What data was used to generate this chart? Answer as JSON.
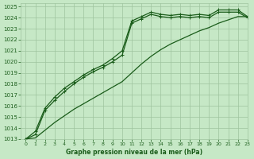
{
  "title": "Graphe pression niveau de la mer (hPa)",
  "bg_color": "#c6e8c6",
  "grid_color": "#9ec49e",
  "line_color": "#1a5c1a",
  "xlim": [
    -0.5,
    23
  ],
  "ylim": [
    1013,
    1025.3
  ],
  "xticks": [
    0,
    1,
    2,
    3,
    4,
    5,
    6,
    7,
    8,
    9,
    10,
    11,
    12,
    13,
    14,
    15,
    16,
    17,
    18,
    19,
    20,
    21,
    22,
    23
  ],
  "yticks": [
    1013,
    1014,
    1015,
    1016,
    1017,
    1018,
    1019,
    1020,
    1021,
    1022,
    1023,
    1024,
    1025
  ],
  "line1_x": [
    0,
    1,
    2,
    3,
    4,
    5,
    6,
    7,
    8,
    9,
    10,
    11,
    12,
    13,
    14,
    15,
    16,
    17,
    18,
    19,
    20,
    21,
    22,
    23
  ],
  "line1_y": [
    1013.0,
    1013.7,
    1015.8,
    1016.8,
    1017.6,
    1018.2,
    1018.8,
    1019.3,
    1019.7,
    1020.3,
    1021.0,
    1023.7,
    1024.1,
    1024.5,
    1024.3,
    1024.2,
    1024.3,
    1024.2,
    1024.3,
    1024.2,
    1024.7,
    1024.7,
    1024.7,
    1024.1
  ],
  "line2_x": [
    0,
    1,
    2,
    3,
    4,
    5,
    6,
    7,
    8,
    9,
    10,
    11,
    12,
    13,
    14,
    15,
    16,
    17,
    18,
    19,
    20,
    21,
    22,
    23
  ],
  "line2_y": [
    1013.0,
    1013.4,
    1015.6,
    1016.5,
    1017.3,
    1018.0,
    1018.6,
    1019.1,
    1019.5,
    1020.0,
    1020.6,
    1023.5,
    1023.9,
    1024.3,
    1024.1,
    1024.0,
    1024.1,
    1024.0,
    1024.1,
    1024.0,
    1024.5,
    1024.5,
    1024.5,
    1024.0
  ],
  "line3_x": [
    0,
    1,
    2,
    3,
    4,
    5,
    6,
    7,
    8,
    9,
    10,
    11,
    12,
    13,
    14,
    15,
    16,
    17,
    18,
    19,
    20,
    21,
    22,
    23
  ],
  "line3_y": [
    1013.0,
    1013.1,
    1013.8,
    1014.5,
    1015.1,
    1015.7,
    1016.2,
    1016.7,
    1017.2,
    1017.7,
    1018.2,
    1019.0,
    1019.8,
    1020.5,
    1021.1,
    1021.6,
    1022.0,
    1022.4,
    1022.8,
    1023.1,
    1023.5,
    1023.8,
    1024.1,
    1024.1
  ]
}
